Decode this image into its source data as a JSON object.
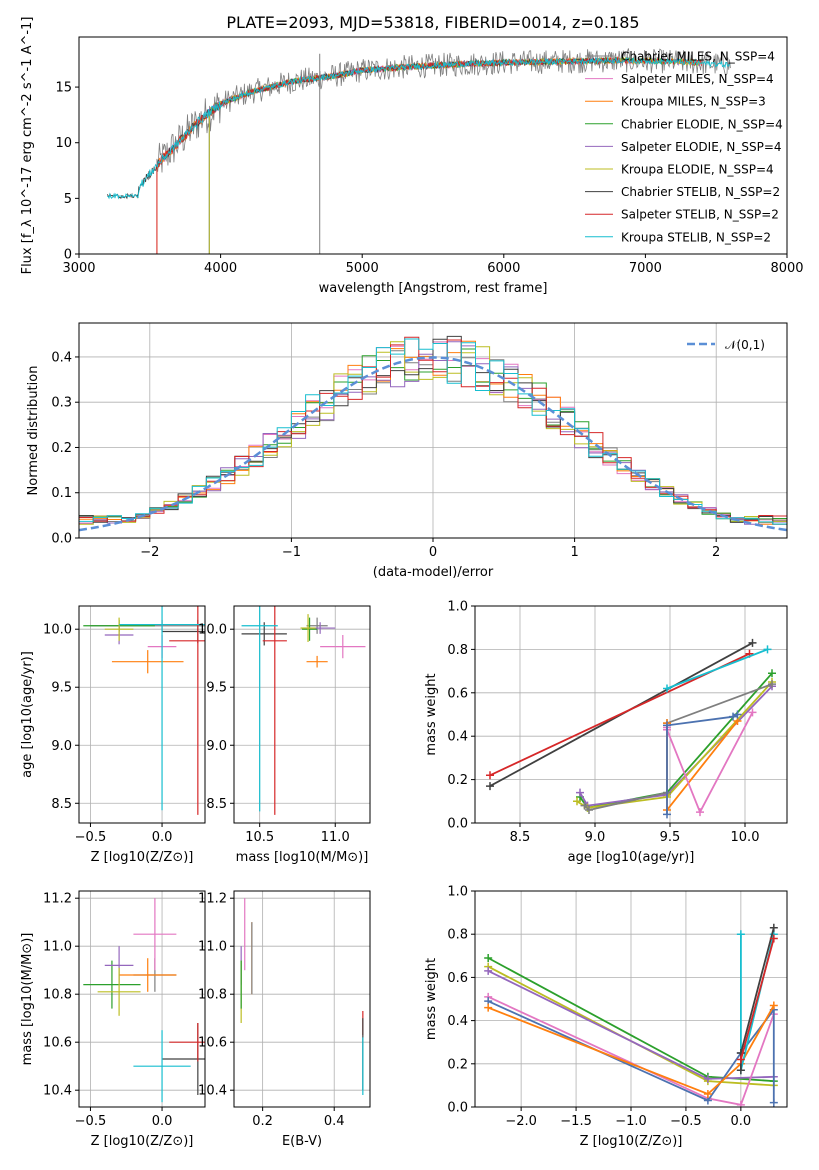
{
  "figure": {
    "title": "PLATE=2093, MJD=53818, FIBERID=0014, z=0.185"
  },
  "colors": {
    "Chabrier MILES": "#7f7f7f",
    "Salpeter MILES": "#e377c2",
    "Kroupa MILES": "#ff7f0e",
    "Chabrier ELODIE": "#2ca02c",
    "Salpeter ELODIE": "#9467bd",
    "Kroupa ELODIE": "#bcbd22",
    "Chabrier STELIB": "#404040",
    "Salpeter STELIB": "#d62728",
    "Kroupa STELIB": "#17becf",
    "blue": "#4c72b0",
    "orange": "#ff7f0e",
    "pink": "#e377c2",
    "green_dark": "#4a7a4a"
  },
  "chart_data": [
    {
      "id": "spectrum",
      "type": "line",
      "xlabel": "wavelength [Angstrom, rest frame]",
      "ylabel": "Flux [f_λ 10^-17 erg cm^-2 s^-1 A^-1]",
      "xlim": [
        3000,
        8000
      ],
      "ylim": [
        0,
        19.5
      ],
      "xticks": [
        "3000",
        "4000",
        "5000",
        "6000",
        "7000",
        "8000"
      ],
      "yticks": [
        "0",
        "5",
        "10",
        "15"
      ],
      "grid": false,
      "legend_position": "upper right",
      "legend": [
        "Chabrier MILES, N_SSP=4",
        "Salpeter MILES, N_SSP=4",
        "Kroupa MILES, N_SSP=3",
        "Chabrier ELODIE, N_SSP=4",
        "Salpeter ELODIE, N_SSP=4",
        "Kroupa ELODIE, N_SSP=4",
        "Chabrier STELIB, N_SSP=2",
        "Salpeter STELIB, N_SSP=2",
        "Kroupa STELIB, N_SSP=2"
      ],
      "continuum": {
        "x": [
          3200,
          3400,
          3550,
          3700,
          3850,
          4000,
          4200,
          4500,
          4800,
          5000,
          5300,
          5600,
          6000,
          6400,
          6800,
          7200,
          7600
        ],
        "y": [
          5.0,
          5.6,
          8.0,
          10.0,
          12.0,
          13.5,
          14.5,
          15.5,
          16.0,
          16.5,
          16.8,
          17.0,
          17.2,
          17.3,
          17.4,
          17.3,
          17.0
        ]
      }
    },
    {
      "id": "residuals",
      "type": "line",
      "xlabel": "(data-model)/error",
      "ylabel": "Normed distribution",
      "xlim": [
        -2.5,
        2.5
      ],
      "ylim": [
        0,
        0.475
      ],
      "xticks": [
        "−2",
        "−1",
        "0",
        "1",
        "2"
      ],
      "yticks": [
        "0.0",
        "0.1",
        "0.2",
        "0.3",
        "0.4"
      ],
      "grid": true,
      "legend_position": "upper right",
      "legend": [
        "𝒩(0,1)"
      ],
      "gaussian": {
        "mu": 0,
        "sigma": 1
      }
    },
    {
      "id": "age_vs_Z",
      "type": "scatter",
      "xlabel": "Z [log10(Z/Z⊙)]",
      "ylabel": "age  [log10(age/yr)]",
      "xlim": [
        -0.58,
        0.3
      ],
      "ylim": [
        8.33,
        10.2
      ],
      "xticks": [
        "−0.5",
        "0.0"
      ],
      "yticks": [
        "8.5",
        "9.0",
        "9.5",
        "10.0"
      ],
      "grid": true,
      "points": [
        {
          "model": "Chabrier MILES",
          "x": 0.0,
          "y": 10.03,
          "xerr": 0.5,
          "yerr": 0.05
        },
        {
          "model": "Salpeter MILES",
          "x": 0.0,
          "y": 9.85,
          "xerr": 0.1,
          "yerr": 0.1
        },
        {
          "model": "Kroupa MILES",
          "x": -0.1,
          "y": 9.72,
          "xerr": 0.25,
          "yerr": 0.1
        },
        {
          "model": "Chabrier ELODIE",
          "x": -0.3,
          "y": 10.03,
          "xerr": 0.25,
          "yerr": 0.05
        },
        {
          "model": "Salpeter ELODIE",
          "x": -0.3,
          "y": 9.95,
          "xerr": 0.1,
          "yerr": 0.08
        },
        {
          "model": "Kroupa ELODIE",
          "x": -0.3,
          "y": 10.0,
          "xerr": 0.1,
          "yerr": 0.1
        },
        {
          "model": "Chabrier STELIB",
          "x": 0.25,
          "y": 9.98,
          "xerr": 0.25,
          "yerr": 0.1
        },
        {
          "model": "Salpeter STELIB",
          "x": 0.25,
          "y": 9.9,
          "xerr": 0.2,
          "yerr": 1.5
        },
        {
          "model": "Kroupa STELIB",
          "x": 0.0,
          "y": 10.04,
          "xerr": 0.3,
          "yerr": 1.6
        }
      ]
    },
    {
      "id": "age_vs_mass",
      "type": "scatter",
      "xlabel": "mass [log10(M/M⊙)]",
      "ylabel": "",
      "xlim": [
        10.33,
        11.23
      ],
      "ylim": [
        8.33,
        10.2
      ],
      "xticks": [
        "10.5",
        "11.0"
      ],
      "yticks": [
        "8.5",
        "9.0",
        "9.5",
        "10.0"
      ],
      "grid": true,
      "points": [
        {
          "model": "Chabrier MILES",
          "x": 10.88,
          "y": 10.03,
          "xerr": 0.07,
          "yerr": 0.07
        },
        {
          "model": "Salpeter MILES",
          "x": 11.05,
          "y": 9.85,
          "xerr": 0.15,
          "yerr": 0.1
        },
        {
          "model": "Kroupa MILES",
          "x": 10.88,
          "y": 9.72,
          "xerr": 0.07,
          "yerr": 0.05
        },
        {
          "model": "Chabrier ELODIE",
          "x": 10.83,
          "y": 10.0,
          "xerr": 0.05,
          "yerr": 0.1
        },
        {
          "model": "Salpeter ELODIE",
          "x": 10.9,
          "y": 10.01,
          "xerr": 0.1,
          "yerr": 0.05
        },
        {
          "model": "Kroupa ELODIE",
          "x": 10.82,
          "y": 10.01,
          "xerr": 0.05,
          "yerr": 0.12
        },
        {
          "model": "Chabrier STELIB",
          "x": 10.53,
          "y": 9.96,
          "xerr": 0.15,
          "yerr": 0.1
        },
        {
          "model": "Salpeter STELIB",
          "x": 10.6,
          "y": 9.9,
          "xerr": 0.08,
          "yerr": 1.5
        },
        {
          "model": "Kroupa STELIB",
          "x": 10.5,
          "y": 10.03,
          "xerr": 0.12,
          "yerr": 1.6
        }
      ]
    },
    {
      "id": "weight_vs_age",
      "type": "line",
      "xlabel": "age  [log10(age/yr)]",
      "ylabel": "mass weight",
      "xlim": [
        8.2,
        10.28
      ],
      "ylim": [
        0,
        1.0
      ],
      "xticks": [
        "8.5",
        "9.0",
        "9.5",
        "10.0"
      ],
      "yticks": [
        "0.0",
        "0.2",
        "0.4",
        "0.6",
        "0.8",
        "1.0"
      ],
      "grid": true,
      "series": [
        {
          "model": "Chabrier STELIB",
          "x": [
            8.3,
            10.05
          ],
          "y": [
            0.17,
            0.83
          ]
        },
        {
          "model": "Salpeter STELIB",
          "x": [
            8.3,
            10.03
          ],
          "y": [
            0.22,
            0.78
          ]
        },
        {
          "model": "Kroupa STELIB",
          "x": [
            9.48,
            10.15
          ],
          "y": [
            0.62,
            0.8
          ]
        },
        {
          "model": "Chabrier ELODIE",
          "x": [
            8.9,
            8.95,
            9.48,
            10.18
          ],
          "y": [
            0.12,
            0.07,
            0.14,
            0.69
          ]
        },
        {
          "model": "Salpeter ELODIE",
          "x": [
            8.9,
            8.95,
            9.48,
            10.18
          ],
          "y": [
            0.14,
            0.08,
            0.13,
            0.63
          ]
        },
        {
          "model": "Kroupa ELODIE",
          "x": [
            8.88,
            8.95,
            9.48,
            10.18
          ],
          "y": [
            0.1,
            0.07,
            0.12,
            0.65
          ]
        },
        {
          "model": "Chabrier MILES",
          "x": [
            8.93,
            8.96,
            9.48,
            9.48,
            10.18
          ],
          "y": [
            0.08,
            0.06,
            0.14,
            0.46,
            0.64
          ]
        },
        {
          "model": "Kroupa MILES",
          "x": [
            9.48,
            9.48,
            9.95
          ],
          "y": [
            0.46,
            0.06,
            0.47
          ]
        },
        {
          "model": "Salpeter MILES",
          "x": [
            9.48,
            9.48,
            9.7,
            10.05
          ],
          "y": [
            0.44,
            0.43,
            0.05,
            0.51
          ]
        },
        {
          "model": "blue",
          "x": [
            9.48,
            9.48,
            9.92,
            9.95
          ],
          "y": [
            0.04,
            0.45,
            0.49,
            0.5
          ]
        }
      ]
    },
    {
      "id": "mass_vs_Z",
      "type": "scatter",
      "xlabel": "Z [log10(Z/Z⊙)]",
      "ylabel": "mass [log10(M/M⊙)]",
      "xlim": [
        -0.58,
        0.3
      ],
      "ylim": [
        10.33,
        11.23
      ],
      "xticks": [
        "−0.5",
        "0.0"
      ],
      "yticks": [
        "10.4",
        "10.6",
        "10.8",
        "11.0",
        "11.2"
      ],
      "grid": true,
      "points": [
        {
          "model": "Chabrier MILES",
          "x": -0.05,
          "y": 10.88,
          "xerr": 0.15,
          "yerr": 0.07
        },
        {
          "model": "Salpeter MILES",
          "x": -0.05,
          "y": 11.05,
          "xerr": 0.15,
          "yerr": 0.15
        },
        {
          "model": "Kroupa MILES",
          "x": -0.1,
          "y": 10.88,
          "xerr": 0.2,
          "yerr": 0.07
        },
        {
          "model": "Chabrier ELODIE",
          "x": -0.35,
          "y": 10.84,
          "xerr": 0.2,
          "yerr": 0.1
        },
        {
          "model": "Salpeter ELODIE",
          "x": -0.3,
          "y": 10.92,
          "xerr": 0.1,
          "yerr": 0.08
        },
        {
          "model": "Kroupa ELODIE",
          "x": -0.3,
          "y": 10.81,
          "xerr": 0.15,
          "yerr": 0.1
        },
        {
          "model": "Chabrier STELIB",
          "x": 0.25,
          "y": 10.53,
          "xerr": 0.25,
          "yerr": 0.15
        },
        {
          "model": "Salpeter STELIB",
          "x": 0.25,
          "y": 10.6,
          "xerr": 0.2,
          "yerr": 0.08
        },
        {
          "model": "Kroupa STELIB",
          "x": 0.0,
          "y": 10.5,
          "xerr": 0.2,
          "yerr": 0.15
        }
      ]
    },
    {
      "id": "mass_vs_ebv",
      "type": "scatter",
      "xlabel": "E(B-V)",
      "ylabel": "",
      "xlim": [
        0.12,
        0.5
      ],
      "ylim": [
        10.33,
        11.23
      ],
      "xticks": [
        "0.2",
        "0.4"
      ],
      "yticks": [
        "10.4",
        "10.6",
        "10.8",
        "11.0",
        "11.2"
      ],
      "grid": true,
      "points": [
        {
          "model": "Salpeter MILES",
          "x": 0.15,
          "y": 11.05,
          "xerr": 0,
          "yerr": 0.15
        },
        {
          "model": "Kroupa MILES",
          "x": 0.17,
          "y": 10.95,
          "xerr": 0,
          "yerr": 0.15
        },
        {
          "model": "Chabrier MILES",
          "x": 0.17,
          "y": 10.95,
          "xerr": 0,
          "yerr": 0.15
        },
        {
          "model": "Salpeter ELODIE",
          "x": 0.14,
          "y": 10.92,
          "xerr": 0,
          "yerr": 0.08
        },
        {
          "model": "Kroupa ELODIE",
          "x": 0.14,
          "y": 10.81,
          "xerr": 0,
          "yerr": 0.13
        },
        {
          "model": "Chabrier ELODIE",
          "x": 0.14,
          "y": 10.84,
          "xerr": 0,
          "yerr": 0.1
        },
        {
          "model": "Salpeter STELIB",
          "x": 0.48,
          "y": 10.68,
          "xerr": 0,
          "yerr": 0.05
        },
        {
          "model": "Chabrier STELIB",
          "x": 0.48,
          "y": 10.55,
          "xerr": 0,
          "yerr": 0.15
        },
        {
          "model": "Kroupa STELIB",
          "x": 0.48,
          "y": 10.5,
          "xerr": 0,
          "yerr": 0.12
        }
      ]
    },
    {
      "id": "weight_vs_Z",
      "type": "line",
      "xlabel": "Z [log10(Z/Z⊙)]",
      "ylabel": "mass weight",
      "xlim": [
        -2.42,
        0.42
      ],
      "ylim": [
        0,
        1.0
      ],
      "xticks": [
        "−2.0",
        "−1.5",
        "−1.0",
        "−0.5",
        "0.0"
      ],
      "yticks": [
        "0.0",
        "0.2",
        "0.4",
        "0.6",
        "0.8",
        "1.0"
      ],
      "grid": true,
      "series": [
        {
          "model": "Chabrier ELODIE",
          "x": [
            -2.3,
            -0.3,
            0.3
          ],
          "y": [
            0.69,
            0.14,
            0.12
          ]
        },
        {
          "model": "Kroupa ELODIE",
          "x": [
            -2.3,
            -0.3,
            0.3
          ],
          "y": [
            0.65,
            0.12,
            0.1
          ]
        },
        {
          "model": "Salpeter ELODIE",
          "x": [
            -2.3,
            -0.3,
            0.3
          ],
          "y": [
            0.63,
            0.13,
            0.14
          ]
        },
        {
          "model": "Salpeter MILES",
          "x": [
            -2.3,
            -0.3,
            0.0,
            0.3
          ],
          "y": [
            0.51,
            0.04,
            0.01,
            0.43
          ]
        },
        {
          "model": "blue",
          "x": [
            -2.3,
            -0.3,
            0.0,
            0.3,
            0.3
          ],
          "y": [
            0.49,
            0.03,
            0.25,
            0.45,
            0.02
          ]
        },
        {
          "model": "orange",
          "x": [
            -2.3,
            -0.3,
            0.0,
            0.3
          ],
          "y": [
            0.46,
            0.06,
            0.2,
            0.47
          ]
        },
        {
          "model": "Kroupa STELIB",
          "x": [
            0.0,
            0.0,
            0.3
          ],
          "y": [
            0.8,
            0.17,
            0.8
          ]
        },
        {
          "model": "Chabrier STELIB",
          "x": [
            0.0,
            0.0,
            0.3
          ],
          "y": [
            0.17,
            0.25,
            0.83
          ]
        },
        {
          "model": "Salpeter STELIB",
          "x": [
            0.0,
            0.3
          ],
          "y": [
            0.22,
            0.78
          ]
        }
      ]
    }
  ]
}
